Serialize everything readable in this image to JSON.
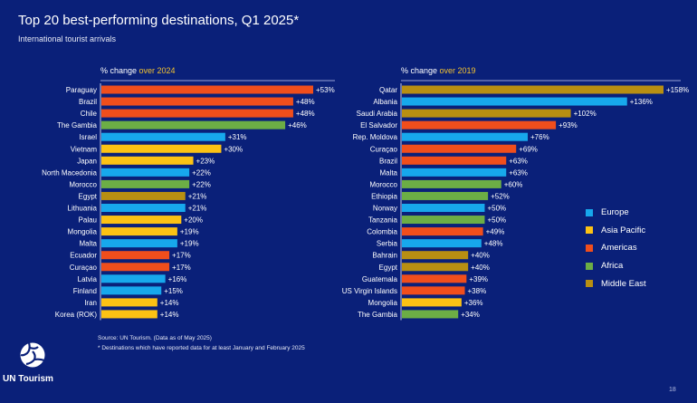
{
  "header": {
    "title": "Top 20 best-performing destinations, Q1 2025*",
    "subtitle": "International tourist arrivals"
  },
  "colors": {
    "Europe": "#17a8ec",
    "Asia Pacific": "#fcc214",
    "Americas": "#f04e1c",
    "Africa": "#6cae45",
    "Middle East": "#b88f12",
    "background": "#0a2079"
  },
  "legend": [
    {
      "label": "Europe",
      "color": "#17a8ec"
    },
    {
      "label": "Asia Pacific",
      "color": "#fcc214"
    },
    {
      "label": "Americas",
      "color": "#f04e1c"
    },
    {
      "label": "Africa",
      "color": "#6cae45"
    },
    {
      "label": "Middle East",
      "color": "#b88f12"
    }
  ],
  "chart_data": [
    {
      "type": "bar",
      "orientation": "horizontal",
      "title_prefix": "% change ",
      "title_highlight": "over 2024",
      "xlim": [
        0,
        53
      ],
      "categories": [
        "Paraguay",
        "Brazil",
        "Chile",
        "The Gambia",
        "Israel",
        "Vietnam",
        "Japan",
        "North Macedonia",
        "Morocco",
        "Egypt",
        "Lithuania",
        "Palau",
        "Mongolia",
        "Malta",
        "Ecuador",
        "Curaçao",
        "Latvia",
        "Finland",
        "Iran",
        "Korea (ROK)"
      ],
      "values": [
        53,
        48,
        48,
        46,
        31,
        30,
        23,
        22,
        22,
        21,
        21,
        20,
        19,
        19,
        17,
        17,
        16,
        15,
        14,
        14
      ],
      "labels": [
        "+53%",
        "+48%",
        "+48%",
        "+46%",
        "+31%",
        "+30%",
        "+23%",
        "+22%",
        "+22%",
        "+21%",
        "+21%",
        "+20%",
        "+19%",
        "+19%",
        "+17%",
        "+17%",
        "+16%",
        "+15%",
        "+14%",
        "+14%"
      ],
      "regions": [
        "Americas",
        "Americas",
        "Americas",
        "Africa",
        "Europe",
        "Asia Pacific",
        "Asia Pacific",
        "Europe",
        "Africa",
        "Middle East",
        "Europe",
        "Asia Pacific",
        "Asia Pacific",
        "Europe",
        "Americas",
        "Americas",
        "Europe",
        "Europe",
        "Asia Pacific",
        "Asia Pacific"
      ]
    },
    {
      "type": "bar",
      "orientation": "horizontal",
      "title_prefix": "% change ",
      "title_highlight": "over 2019",
      "xlim": [
        0,
        158
      ],
      "categories": [
        "Qatar",
        "Albania",
        "Saudi Arabia",
        "El Salvador",
        "Rep. Moldova",
        "Curaçao",
        "Brazil",
        "Malta",
        "Morocco",
        "Ethiopia",
        "Norway",
        "Tanzania",
        "Colombia",
        "Serbia",
        "Bahrain",
        "Egypt",
        "Guatemala",
        "US Virgin Islands",
        "Mongolia",
        "The Gambia"
      ],
      "values": [
        158,
        136,
        102,
        93,
        76,
        69,
        63,
        63,
        60,
        52,
        50,
        50,
        49,
        48,
        40,
        40,
        39,
        38,
        36,
        34
      ],
      "labels": [
        "+158%",
        "+136%",
        "+102%",
        "+93%",
        "+76%",
        "+69%",
        "+63%",
        "+63%",
        "+60%",
        "+52%",
        "+50%",
        "+50%",
        "+49%",
        "+48%",
        "+40%",
        "+40%",
        "+39%",
        "+38%",
        "+36%",
        "+34%"
      ],
      "regions": [
        "Middle East",
        "Europe",
        "Middle East",
        "Americas",
        "Europe",
        "Americas",
        "Americas",
        "Europe",
        "Africa",
        "Africa",
        "Europe",
        "Africa",
        "Americas",
        "Europe",
        "Middle East",
        "Middle East",
        "Americas",
        "Americas",
        "Asia Pacific",
        "Africa"
      ]
    }
  ],
  "footer": {
    "source": "Source: UN Tourism. (Data as of May 2025)",
    "note": "* Destinations which have reported data for at least January and February 2025",
    "logo_text": "UN Tourism",
    "page_number": "18"
  }
}
